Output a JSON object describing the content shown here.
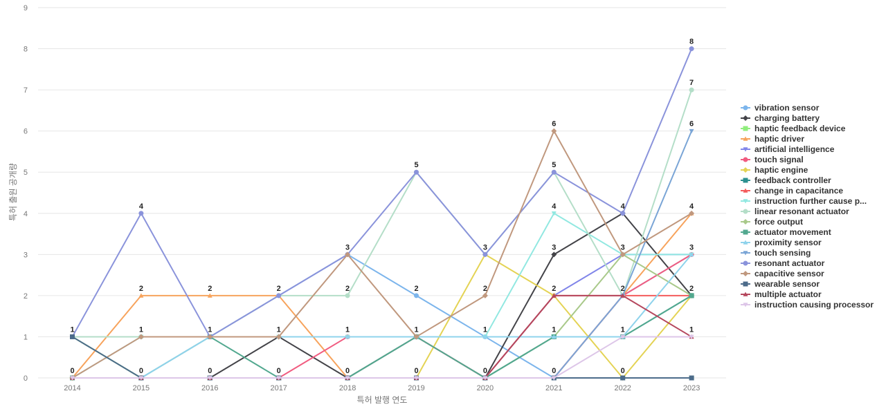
{
  "chart_data": {
    "type": "line",
    "title": "",
    "xlabel": "특허 발행 연도",
    "ylabel": "특허 출원 공개량",
    "ylim": [
      0,
      9
    ],
    "grid": true,
    "legend_position": "right",
    "categories": [
      "2014",
      "2015",
      "2016",
      "2017",
      "2018",
      "2019",
      "2020",
      "2021",
      "2022",
      "2023"
    ],
    "y_ticks": [
      "0",
      "1",
      "2",
      "3",
      "4",
      "5",
      "6",
      "7",
      "8",
      "9"
    ],
    "series": [
      {
        "name": "vibration sensor",
        "color": "#7cb5ec",
        "marker": "circle",
        "values": [
          1,
          1,
          1,
          2,
          3,
          2,
          1,
          0,
          2,
          3
        ]
      },
      {
        "name": "charging battery",
        "color": "#434348",
        "marker": "diamond",
        "values": [
          0,
          0,
          0,
          1,
          0,
          1,
          0,
          3,
          4,
          2
        ]
      },
      {
        "name": "haptic feedback device",
        "color": "#90ed7d",
        "marker": "square",
        "values": [
          1,
          0,
          0,
          0,
          0,
          0,
          0,
          0,
          0,
          0
        ]
      },
      {
        "name": "haptic driver",
        "color": "#f7a35c",
        "marker": "triangle",
        "values": [
          0,
          2,
          2,
          2,
          0,
          0,
          0,
          0,
          2,
          4
        ]
      },
      {
        "name": "artificial intelligence",
        "color": "#8085e9",
        "marker": "triangle-down",
        "values": [
          0,
          0,
          0,
          0,
          0,
          0,
          0,
          2,
          3,
          3
        ]
      },
      {
        "name": "touch signal",
        "color": "#f15c80",
        "marker": "circle",
        "values": [
          0,
          0,
          0,
          0,
          1,
          1,
          0,
          0,
          2,
          3
        ]
      },
      {
        "name": "haptic engine",
        "color": "#e4d354",
        "marker": "diamond",
        "values": [
          0,
          0,
          0,
          0,
          0,
          0,
          3,
          2,
          0,
          2
        ]
      },
      {
        "name": "feedback controller",
        "color": "#2b908f",
        "marker": "square",
        "values": [
          0,
          0,
          0,
          0,
          0,
          0,
          0,
          1,
          1,
          2
        ]
      },
      {
        "name": "change in capacitance",
        "color": "#f45b5b",
        "marker": "triangle",
        "values": [
          0,
          0,
          0,
          0,
          0,
          0,
          0,
          2,
          2,
          2
        ]
      },
      {
        "name": "instruction further cause p...",
        "color": "#91e8e1",
        "marker": "triangle-down",
        "values": [
          0,
          1,
          1,
          1,
          1,
          1,
          1,
          4,
          3,
          3
        ]
      },
      {
        "name": "linear resonant actuator",
        "color": "#b4dec8",
        "marker": "circle",
        "values": [
          1,
          1,
          1,
          2,
          2,
          5,
          3,
          5,
          2,
          7
        ]
      },
      {
        "name": "force output",
        "color": "#a9c98a",
        "marker": "diamond",
        "values": [
          0,
          0,
          0,
          0,
          0,
          0,
          0,
          1,
          3,
          2
        ]
      },
      {
        "name": "actuator movement",
        "color": "#52a88f",
        "marker": "square",
        "values": [
          0,
          0,
          1,
          0,
          0,
          1,
          0,
          1,
          1,
          2
        ]
      },
      {
        "name": "proximity sensor",
        "color": "#8fd3ec",
        "marker": "triangle",
        "values": [
          0,
          0,
          1,
          1,
          1,
          1,
          1,
          1,
          1,
          3
        ]
      },
      {
        "name": "touch sensing",
        "color": "#7aa5d6",
        "marker": "triangle-down",
        "values": [
          0,
          0,
          0,
          0,
          0,
          0,
          0,
          0,
          2,
          6
        ]
      },
      {
        "name": "resonant actuator",
        "color": "#8a93db",
        "marker": "circle",
        "values": [
          1,
          4,
          1,
          2,
          3,
          5,
          3,
          5,
          4,
          8
        ]
      },
      {
        "name": "capacitive sensor",
        "color": "#c0987e",
        "marker": "diamond",
        "values": [
          0,
          1,
          1,
          1,
          3,
          1,
          2,
          6,
          3,
          4
        ]
      },
      {
        "name": "wearable sensor",
        "color": "#4c6b8a",
        "marker": "square",
        "values": [
          1,
          0,
          0,
          0,
          0,
          0,
          0,
          0,
          0,
          0
        ]
      },
      {
        "name": "multiple actuator",
        "color": "#b5475d",
        "marker": "triangle",
        "values": [
          0,
          0,
          0,
          0,
          0,
          0,
          0,
          2,
          2,
          1
        ]
      },
      {
        "name": "instruction causing processor",
        "color": "#ddc6e8",
        "marker": "triangle-down",
        "values": [
          0,
          0,
          0,
          0,
          0,
          0,
          0,
          0,
          1,
          1
        ]
      }
    ],
    "data_labels": [
      {
        "x": "2014",
        "value": "1",
        "y": 1
      },
      {
        "x": "2014",
        "value": "0",
        "y": 0
      },
      {
        "x": "2015",
        "value": "4",
        "y": 4
      },
      {
        "x": "2015",
        "value": "2",
        "y": 2
      },
      {
        "x": "2015",
        "value": "1",
        "y": 1
      },
      {
        "x": "2015",
        "value": "0",
        "y": 0
      },
      {
        "x": "2016",
        "value": "2",
        "y": 2
      },
      {
        "x": "2016",
        "value": "1",
        "y": 1
      },
      {
        "x": "2016",
        "value": "0",
        "y": 0
      },
      {
        "x": "2017",
        "value": "2",
        "y": 2
      },
      {
        "x": "2017",
        "value": "1",
        "y": 1
      },
      {
        "x": "2017",
        "value": "0",
        "y": 0
      },
      {
        "x": "2018",
        "value": "3",
        "y": 3
      },
      {
        "x": "2018",
        "value": "2",
        "y": 2
      },
      {
        "x": "2018",
        "value": "1",
        "y": 1
      },
      {
        "x": "2018",
        "value": "0",
        "y": 0
      },
      {
        "x": "2019",
        "value": "5",
        "y": 5
      },
      {
        "x": "2019",
        "value": "2",
        "y": 2
      },
      {
        "x": "2019",
        "value": "1",
        "y": 1
      },
      {
        "x": "2019",
        "value": "0",
        "y": 0
      },
      {
        "x": "2020",
        "value": "3",
        "y": 3
      },
      {
        "x": "2020",
        "value": "2",
        "y": 2
      },
      {
        "x": "2020",
        "value": "1",
        "y": 1
      },
      {
        "x": "2020",
        "value": "0",
        "y": 0
      },
      {
        "x": "2021",
        "value": "6",
        "y": 6
      },
      {
        "x": "2021",
        "value": "5",
        "y": 5
      },
      {
        "x": "2021",
        "value": "4",
        "y": 4
      },
      {
        "x": "2021",
        "value": "3",
        "y": 3
      },
      {
        "x": "2021",
        "value": "2",
        "y": 2
      },
      {
        "x": "2021",
        "value": "1",
        "y": 1
      },
      {
        "x": "2021",
        "value": "0",
        "y": 0
      },
      {
        "x": "2022",
        "value": "4",
        "y": 4
      },
      {
        "x": "2022",
        "value": "3",
        "y": 3
      },
      {
        "x": "2022",
        "value": "2",
        "y": 2
      },
      {
        "x": "2022",
        "value": "1",
        "y": 1
      },
      {
        "x": "2022",
        "value": "0",
        "y": 0
      },
      {
        "x": "2023",
        "value": "8",
        "y": 8
      },
      {
        "x": "2023",
        "value": "7",
        "y": 7
      },
      {
        "x": "2023",
        "value": "6",
        "y": 6
      },
      {
        "x": "2023",
        "value": "4",
        "y": 4
      },
      {
        "x": "2023",
        "value": "3",
        "y": 3
      },
      {
        "x": "2023",
        "value": "2",
        "y": 2
      },
      {
        "x": "2023",
        "value": "1",
        "y": 1
      }
    ]
  }
}
